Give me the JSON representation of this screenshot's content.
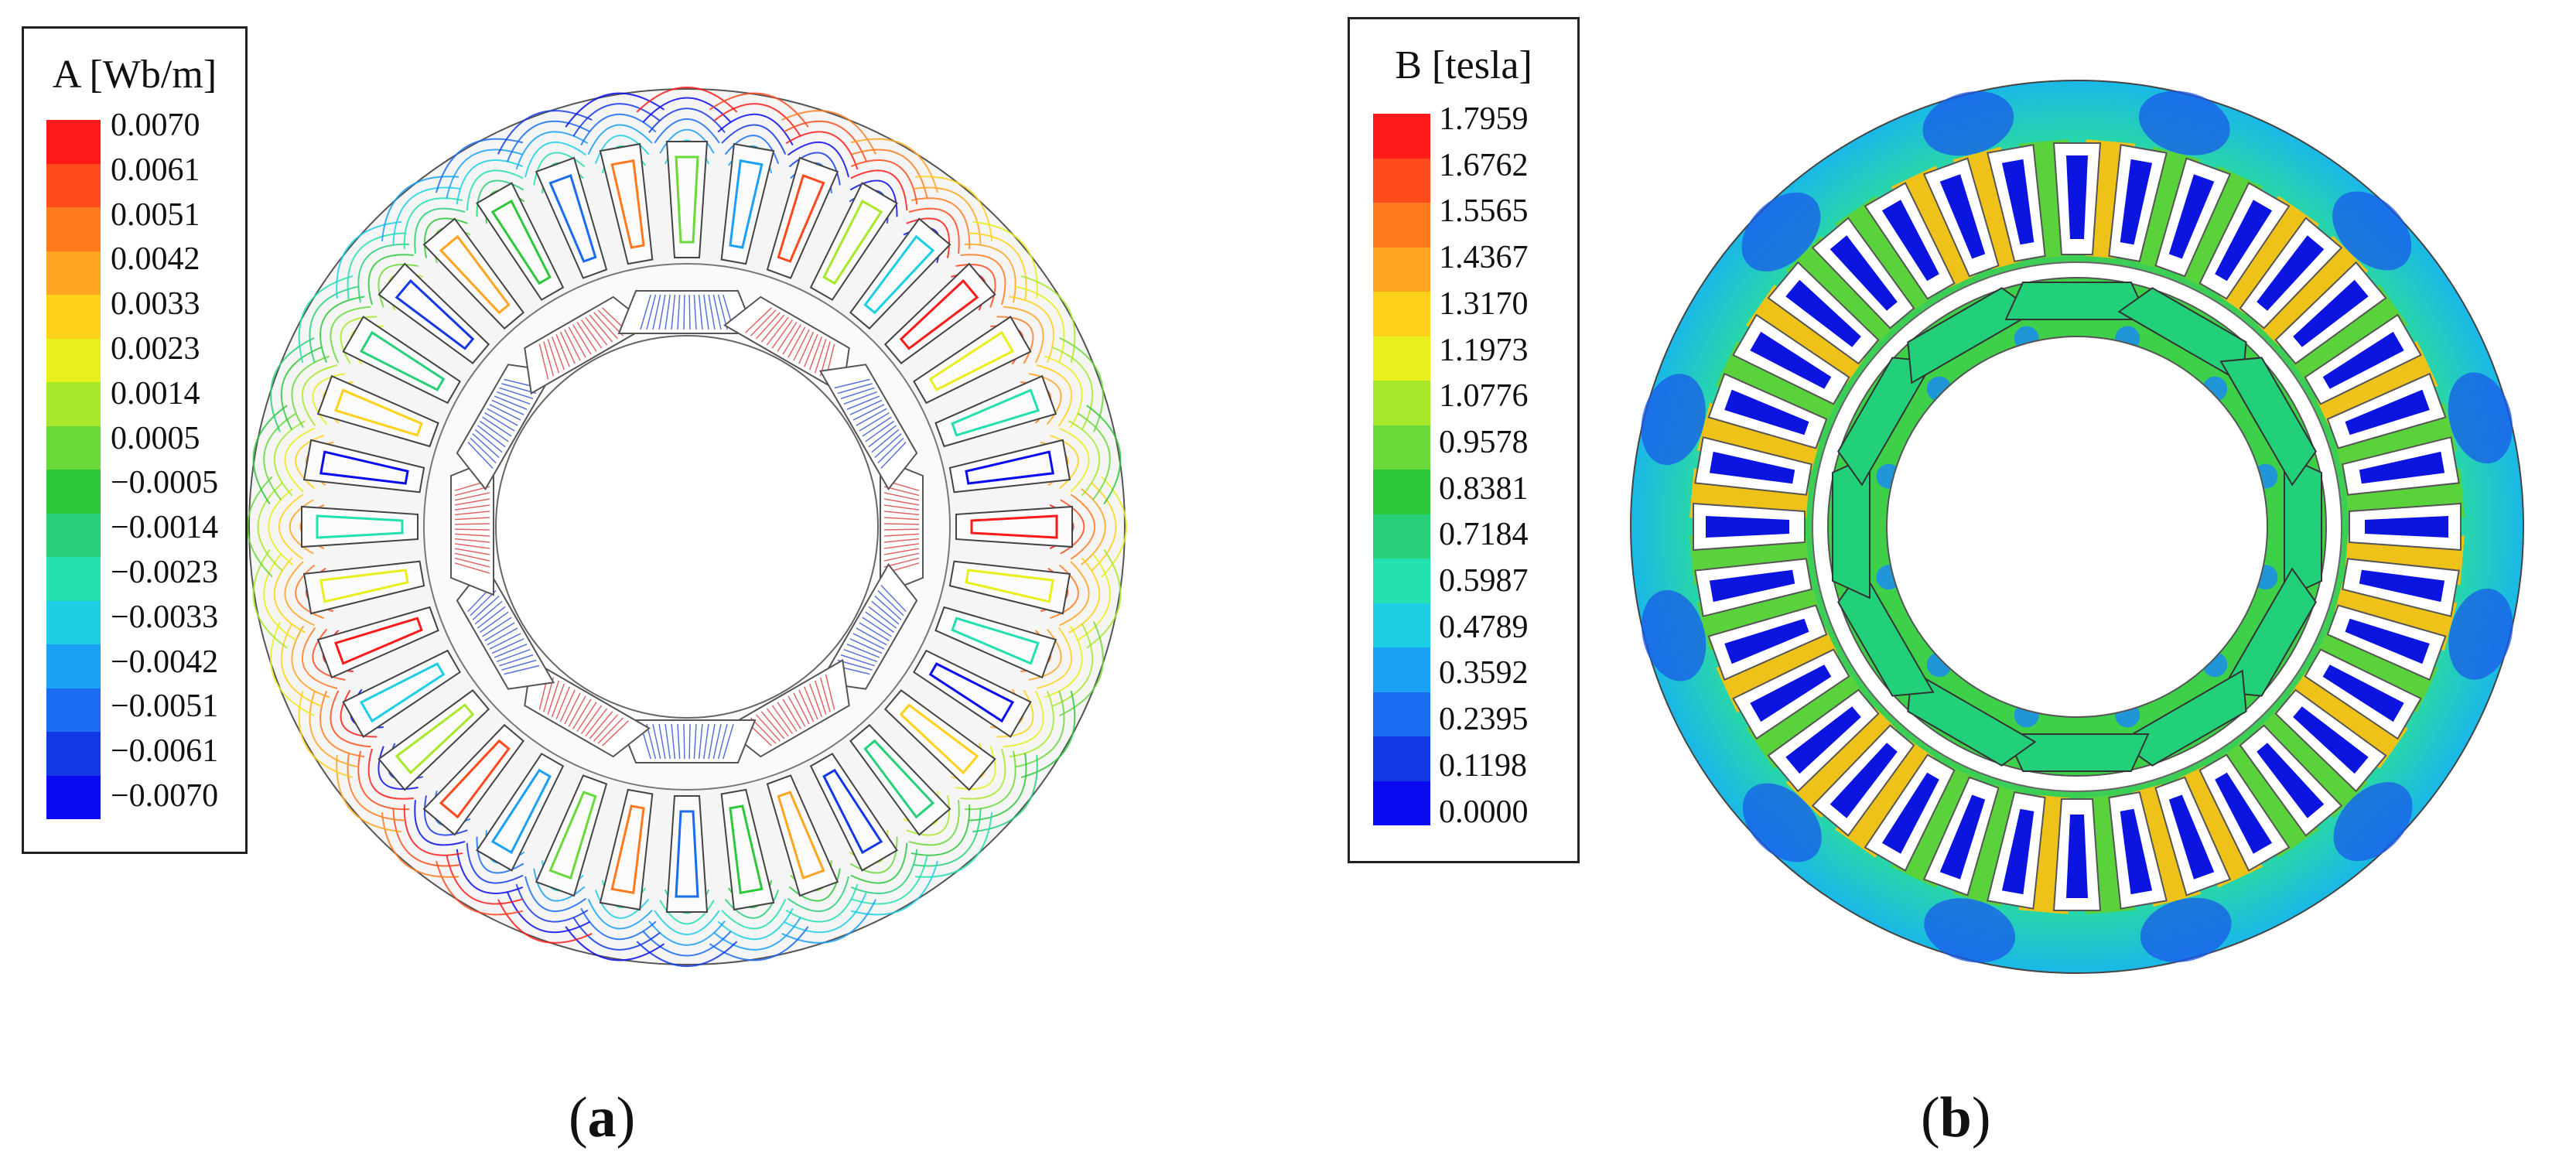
{
  "panel_a": {
    "legend": {
      "title": "A [Wb/m]",
      "ticks": [
        "0.0070",
        "0.0061",
        "0.0051",
        "0.0042",
        "0.0033",
        "0.0023",
        "0.0014",
        "0.0005",
        "−0.0005",
        "−0.0014",
        "−0.0023",
        "−0.0033",
        "−0.0042",
        "−0.0051",
        "−0.0061",
        "−0.0070"
      ],
      "colors": [
        "#ff1a1a",
        "#ff4a1c",
        "#ff7a1e",
        "#ffa521",
        "#ffd11a",
        "#e8ef1c",
        "#a8e82a",
        "#6ad93a",
        "#2ec83c",
        "#28d07a",
        "#22e0b0",
        "#1ccfe4",
        "#1aa0f4",
        "#1a6cf0",
        "#1438e6",
        "#0a0af0"
      ]
    },
    "caption_letter": "a"
  },
  "panel_b": {
    "legend": {
      "title": "B [tesla]",
      "ticks": [
        "1.7959",
        "1.6762",
        "1.5565",
        "1.4367",
        "1.3170",
        "1.1973",
        "1.0776",
        "0.9578",
        "0.8381",
        "0.7184",
        "0.5987",
        "0.4789",
        "0.3592",
        "0.2395",
        "0.1198",
        "0.0000"
      ],
      "colors": [
        "#ff1a1a",
        "#ff4a1c",
        "#ff7a1e",
        "#ffa521",
        "#ffd11a",
        "#e8ef1c",
        "#a8e82a",
        "#6ad93a",
        "#2ec83c",
        "#28d07a",
        "#22e0b0",
        "#1ccfe4",
        "#1aa0f4",
        "#1a6cf0",
        "#1438e6",
        "#0a0af0"
      ]
    },
    "caption_letter": "b"
  }
}
